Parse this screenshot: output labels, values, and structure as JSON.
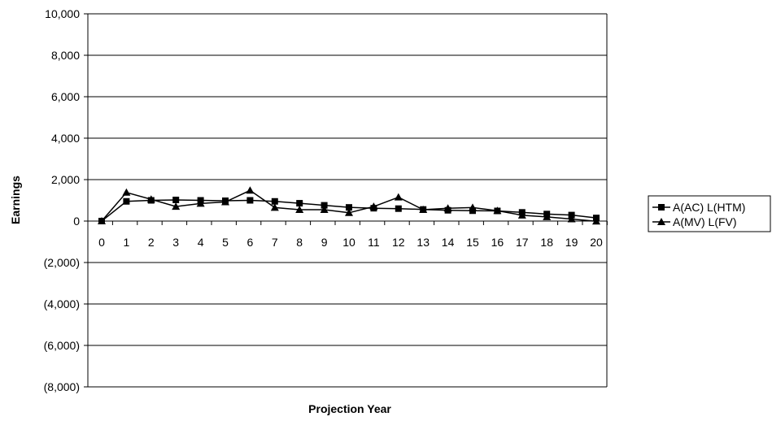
{
  "chart_data": {
    "type": "line",
    "title": "",
    "xlabel": "Projection Year",
    "ylabel": "Earnings",
    "categories": [
      "0",
      "1",
      "2",
      "3",
      "4",
      "5",
      "6",
      "7",
      "8",
      "9",
      "10",
      "11",
      "12",
      "13",
      "14",
      "15",
      "16",
      "17",
      "18",
      "19",
      "20"
    ],
    "ylim": [
      -8000,
      10000
    ],
    "yticks": [
      10000,
      8000,
      6000,
      4000,
      2000,
      0,
      -2000,
      -4000,
      -6000,
      -8000
    ],
    "ytick_labels": [
      "10,000",
      "8,000",
      "6,000",
      "4,000",
      "2,000",
      "0",
      "(2,000)",
      "(4,000)",
      "(6,000)",
      "(8,000)"
    ],
    "grid": true,
    "legend_position": "right",
    "series": [
      {
        "name": "A(AC) L(HTM)",
        "marker": "square",
        "color": "#000000",
        "values": [
          0,
          950,
          1000,
          1020,
          1000,
          980,
          1000,
          950,
          860,
          760,
          660,
          620,
          600,
          560,
          520,
          500,
          490,
          420,
          340,
          290,
          150
        ]
      },
      {
        "name": "A(MV) L(FV)",
        "marker": "triangle",
        "color": "#000000",
        "values": [
          0,
          1380,
          1050,
          700,
          850,
          920,
          1480,
          650,
          550,
          550,
          400,
          700,
          1150,
          550,
          620,
          650,
          500,
          280,
          200,
          100,
          -10
        ]
      }
    ]
  }
}
